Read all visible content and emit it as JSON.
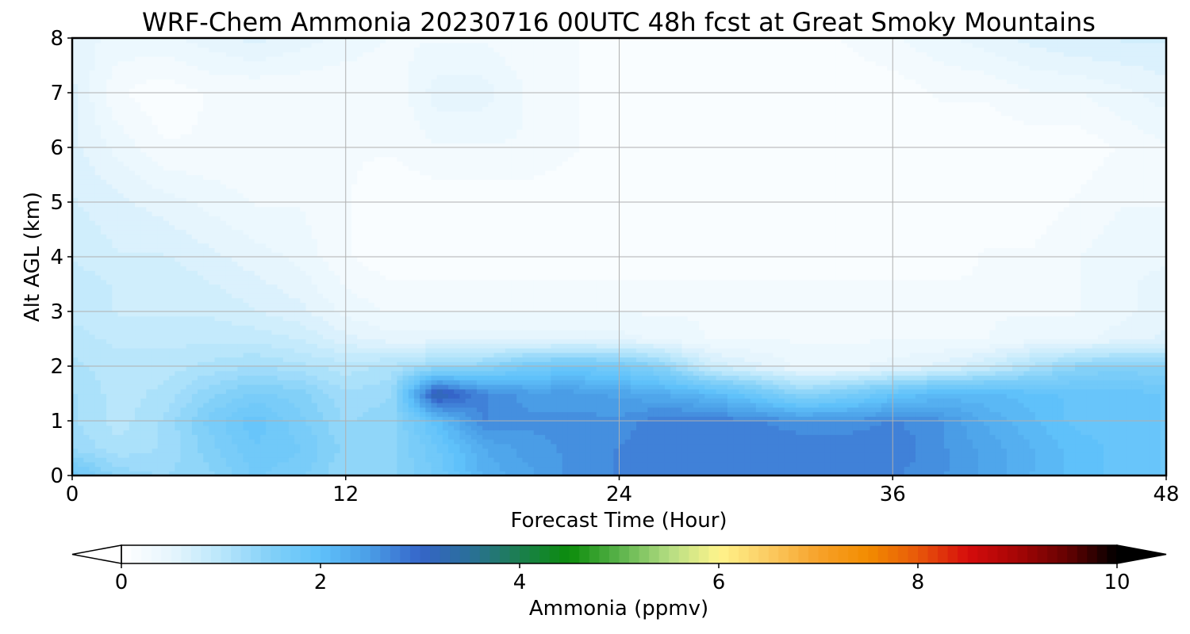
{
  "chart_data": {
    "type": "heatmap",
    "title": "WRF-Chem Ammonia  20230716 00UTC 48h fcst at Great Smoky Mountains",
    "xlabel": "Forecast Time (Hour)",
    "ylabel": "Alt AGL (km)",
    "xlim": [
      0,
      48
    ],
    "ylim": [
      0,
      8
    ],
    "xticks": [
      "0",
      "12",
      "24",
      "36",
      "48"
    ],
    "yticks": [
      "0",
      "1",
      "2",
      "3",
      "4",
      "5",
      "6",
      "7",
      "8"
    ],
    "grid": true,
    "colorbar": {
      "label": "Ammonia  (ppmv)",
      "range": [
        0,
        10
      ],
      "extend": "both",
      "ticks": [
        "0",
        "2",
        "4",
        "6",
        "8",
        "10"
      ],
      "colors": [
        "#ffffff",
        "#e6f5fd",
        "#b9e6fb",
        "#82d0f8",
        "#5fc1fa",
        "#4a9de6",
        "#3565c9",
        "#2a6f99",
        "#1b7f4f",
        "#0b8c0b",
        "#5ab34a",
        "#b4dd82",
        "#fff48c",
        "#fbcb62",
        "#f7a22a",
        "#f28c00",
        "#e8580a",
        "#d60c0c",
        "#a50505",
        "#650202",
        "#000000"
      ]
    },
    "times": [
      0,
      2,
      4,
      6,
      8,
      10,
      12,
      14,
      16,
      18,
      20,
      22,
      24,
      26,
      28,
      30,
      32,
      34,
      36,
      38,
      40,
      42,
      44,
      46,
      48
    ],
    "altitudes": [
      0,
      0.5,
      1,
      1.5,
      2,
      2.5,
      3,
      3.5,
      4,
      5,
      6,
      7,
      8
    ],
    "values": [
      [
        1.8,
        1.4,
        1.3,
        1.4,
        1.7,
        1.6,
        1.3,
        1.4,
        1.7,
        2.2,
        2.4,
        2.6,
        2.7,
        2.8,
        2.8,
        2.8,
        2.7,
        2.7,
        2.7,
        2.6,
        2.4,
        2.2,
        2.0,
        1.9,
        1.8
      ],
      [
        1.3,
        1.1,
        1.2,
        1.5,
        1.8,
        1.7,
        1.4,
        1.4,
        1.8,
        2.3,
        2.5,
        2.6,
        2.7,
        2.8,
        2.8,
        2.8,
        2.8,
        2.8,
        2.8,
        2.6,
        2.4,
        2.2,
        2.0,
        1.9,
        1.8
      ],
      [
        1.2,
        1.0,
        1.2,
        1.6,
        1.9,
        1.6,
        1.3,
        1.4,
        2.0,
        2.7,
        2.6,
        2.6,
        2.6,
        2.8,
        2.8,
        2.7,
        2.6,
        2.6,
        2.7,
        2.6,
        2.3,
        2.1,
        1.9,
        1.9,
        1.8
      ],
      [
        1.2,
        1.0,
        1.1,
        1.4,
        1.6,
        1.5,
        1.2,
        1.3,
        3.3,
        2.7,
        2.5,
        2.5,
        2.4,
        2.3,
        2.1,
        1.8,
        1.4,
        1.6,
        1.9,
        2.1,
        2.1,
        2.0,
        1.9,
        1.9,
        1.8
      ],
      [
        1.1,
        1.0,
        1.0,
        1.1,
        1.2,
        1.1,
        1.0,
        1.1,
        1.3,
        1.4,
        1.7,
        1.8,
        1.7,
        1.4,
        0.8,
        0.6,
        0.4,
        0.4,
        0.5,
        0.6,
        0.8,
        1.1,
        1.4,
        1.5,
        1.4
      ],
      [
        1.0,
        0.9,
        0.9,
        0.9,
        0.9,
        0.8,
        0.6,
        0.5,
        0.5,
        0.5,
        0.5,
        0.5,
        0.5,
        0.4,
        0.3,
        0.3,
        0.3,
        0.3,
        0.3,
        0.3,
        0.3,
        0.4,
        0.4,
        0.5,
        0.6
      ],
      [
        0.9,
        0.8,
        0.8,
        0.8,
        0.7,
        0.6,
        0.4,
        0.3,
        0.3,
        0.3,
        0.3,
        0.3,
        0.3,
        0.3,
        0.3,
        0.3,
        0.3,
        0.3,
        0.3,
        0.3,
        0.3,
        0.3,
        0.3,
        0.4,
        0.5
      ],
      [
        0.9,
        0.8,
        0.8,
        0.7,
        0.6,
        0.5,
        0.3,
        0.2,
        0.2,
        0.2,
        0.2,
        0.2,
        0.2,
        0.2,
        0.2,
        0.2,
        0.2,
        0.2,
        0.2,
        0.2,
        0.2,
        0.3,
        0.3,
        0.4,
        0.5
      ],
      [
        0.8,
        0.7,
        0.7,
        0.6,
        0.5,
        0.4,
        0.2,
        0.1,
        0.1,
        0.1,
        0.1,
        0.1,
        0.1,
        0.1,
        0.1,
        0.1,
        0.1,
        0.1,
        0.1,
        0.1,
        0.2,
        0.2,
        0.3,
        0.4,
        0.4
      ],
      [
        0.7,
        0.6,
        0.5,
        0.4,
        0.3,
        0.3,
        0.2,
        0.1,
        0.1,
        0.1,
        0.1,
        0.1,
        0.1,
        0.1,
        0.1,
        0.1,
        0.1,
        0.1,
        0.1,
        0.1,
        0.1,
        0.1,
        0.2,
        0.3,
        0.3
      ],
      [
        0.6,
        0.4,
        0.2,
        0.2,
        0.2,
        0.2,
        0.2,
        0.2,
        0.3,
        0.3,
        0.3,
        0.2,
        0.1,
        0.1,
        0.1,
        0.1,
        0.1,
        0.1,
        0.1,
        0.1,
        0.1,
        0.1,
        0.1,
        0.2,
        0.3
      ],
      [
        0.6,
        0.2,
        0.1,
        0.2,
        0.2,
        0.2,
        0.2,
        0.2,
        0.5,
        0.5,
        0.3,
        0.2,
        0.1,
        0.1,
        0.1,
        0.1,
        0.1,
        0.1,
        0.1,
        0.2,
        0.2,
        0.3,
        0.3,
        0.4,
        0.5
      ],
      [
        0.5,
        0.4,
        0.4,
        0.5,
        0.6,
        0.5,
        0.4,
        0.3,
        0.3,
        0.3,
        0.2,
        0.2,
        0.1,
        0.1,
        0.1,
        0.1,
        0.1,
        0.2,
        0.3,
        0.4,
        0.5,
        0.6,
        0.7,
        0.7,
        0.7
      ]
    ]
  }
}
